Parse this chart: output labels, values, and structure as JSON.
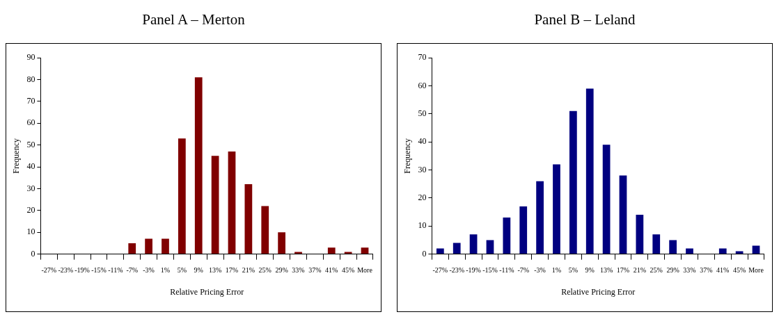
{
  "chart_data": [
    {
      "type": "bar",
      "title": "Panel A – Merton",
      "xlabel": "Relative Pricing Error",
      "ylabel": "Frequency",
      "categories": [
        "-27%",
        "-23%",
        "-19%",
        "-15%",
        "-11%",
        "-7%",
        "-3%",
        "1%",
        "5%",
        "9%",
        "13%",
        "17%",
        "21%",
        "25%",
        "29%",
        "33%",
        "37%",
        "41%",
        "45%",
        "More"
      ],
      "values": [
        0,
        0,
        0,
        0,
        0,
        5,
        7,
        7,
        53,
        81,
        45,
        47,
        32,
        22,
        10,
        1,
        0,
        3,
        1,
        3
      ],
      "color": "#800000",
      "ylim": [
        0,
        90
      ],
      "yticks": [
        0,
        10,
        20,
        30,
        40,
        50,
        60,
        70,
        80,
        90
      ],
      "grid": false,
      "legend": false
    },
    {
      "type": "bar",
      "title": "Panel B – Leland",
      "xlabel": "Relative Pricing Error",
      "ylabel": "Frequency",
      "categories": [
        "-27%",
        "-23%",
        "-19%",
        "-15%",
        "-11%",
        "-7%",
        "-3%",
        "1%",
        "5%",
        "9%",
        "13%",
        "17%",
        "21%",
        "25%",
        "29%",
        "33%",
        "37%",
        "41%",
        "45%",
        "More"
      ],
      "values": [
        2,
        4,
        7,
        5,
        13,
        17,
        26,
        32,
        51,
        59,
        39,
        28,
        14,
        7,
        5,
        2,
        0,
        2,
        1,
        3
      ],
      "color": "#000080",
      "ylim": [
        0,
        70
      ],
      "yticks": [
        0,
        10,
        20,
        30,
        40,
        50,
        60,
        70
      ],
      "grid": false,
      "legend": false
    }
  ]
}
